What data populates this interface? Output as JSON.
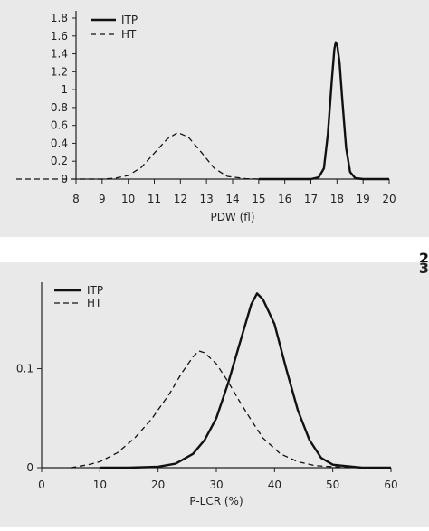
{
  "chart_data": [
    {
      "type": "line",
      "panel_number": "2",
      "xlabel": "PDW (fl)",
      "ylabel": "",
      "xlim": [
        8,
        20
      ],
      "ylim": [
        0,
        1.8
      ],
      "xticks": [
        8,
        9,
        10,
        11,
        12,
        13,
        14,
        15,
        16,
        17,
        18,
        19,
        20
      ],
      "yticks": [
        0,
        0.2,
        0.4,
        0.6,
        0.8,
        1,
        1.2,
        1.4,
        1.6,
        1.8
      ],
      "ytick_labels": [
        "0",
        "0.2",
        "0.4",
        "0.6",
        "0.8",
        "1",
        "1.2",
        "1.4",
        "1.6",
        "1.8"
      ],
      "legend_position": "top-left",
      "grid": false,
      "series": [
        {
          "name": "ITP",
          "style": "solid",
          "x": [
            15,
            16,
            16.5,
            17,
            17.3,
            17.5,
            17.65,
            17.8,
            17.9,
            17.95,
            18.0,
            18.1,
            18.2,
            18.35,
            18.5,
            18.7,
            19,
            20
          ],
          "y": [
            0,
            0,
            0,
            0,
            0.02,
            0.12,
            0.5,
            1.1,
            1.45,
            1.53,
            1.52,
            1.3,
            0.9,
            0.35,
            0.08,
            0.01,
            0,
            0
          ]
        },
        {
          "name": "HT",
          "style": "dashed",
          "x": [
            7,
            8,
            9,
            9.5,
            10,
            10.5,
            11,
            11.5,
            11.9,
            12.3,
            12.8,
            13.3,
            13.8,
            14.5,
            15
          ],
          "y": [
            0,
            0,
            0,
            0.01,
            0.04,
            0.13,
            0.29,
            0.45,
            0.52,
            0.47,
            0.3,
            0.12,
            0.03,
            0.005,
            0
          ]
        }
      ]
    },
    {
      "type": "line",
      "panel_number": "3",
      "xlabel": "P-LCR (%)",
      "ylabel": "",
      "xlim": [
        0,
        60
      ],
      "ylim": [
        0,
        0.18
      ],
      "xticks": [
        0,
        10,
        20,
        30,
        40,
        50,
        60
      ],
      "yticks": [
        0,
        0.1
      ],
      "ytick_labels": [
        "0",
        "0.1"
      ],
      "legend_position": "top-left",
      "grid": false,
      "series": [
        {
          "name": "ITP",
          "style": "solid",
          "x": [
            10,
            15,
            20,
            23,
            26,
            28,
            30,
            32,
            34,
            36,
            37,
            38,
            40,
            42,
            44,
            46,
            48,
            50,
            55,
            60
          ],
          "y": [
            0,
            0,
            0.001,
            0.004,
            0.014,
            0.028,
            0.05,
            0.085,
            0.125,
            0.165,
            0.176,
            0.17,
            0.145,
            0.1,
            0.058,
            0.028,
            0.01,
            0.003,
            0,
            0
          ]
        },
        {
          "name": "HT",
          "style": "dashed",
          "x": [
            5,
            8,
            10,
            13,
            16,
            19,
            22,
            24,
            26,
            27,
            28,
            30,
            32,
            34,
            36,
            38,
            41,
            44,
            47,
            50,
            53
          ],
          "y": [
            0,
            0.003,
            0.006,
            0.015,
            0.03,
            0.05,
            0.075,
            0.095,
            0.112,
            0.118,
            0.116,
            0.105,
            0.087,
            0.067,
            0.048,
            0.03,
            0.014,
            0.006,
            0.002,
            0.001,
            0
          ]
        }
      ]
    }
  ]
}
